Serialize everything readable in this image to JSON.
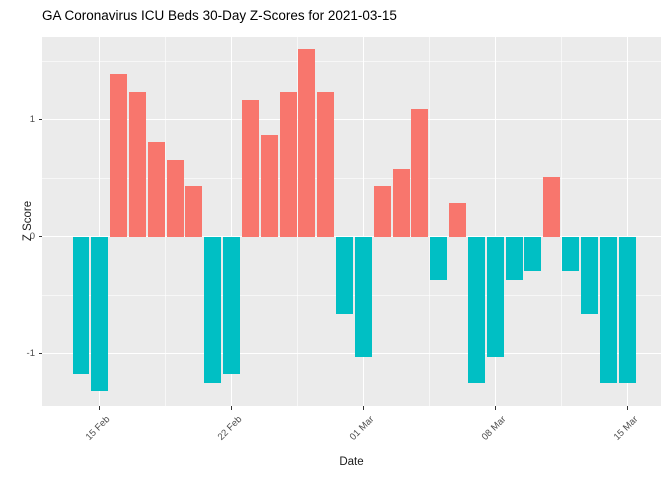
{
  "chart_data": {
    "type": "bar",
    "title": "GA Coronavirus ICU Beds 30-Day Z-Scores for 2021-03-15",
    "xlabel": "Date",
    "ylabel": "Z Score",
    "dates": [
      "2021-02-14",
      "2021-02-15",
      "2021-02-16",
      "2021-02-17",
      "2021-02-18",
      "2021-02-19",
      "2021-02-20",
      "2021-02-21",
      "2021-02-22",
      "2021-02-23",
      "2021-02-24",
      "2021-02-25",
      "2021-02-26",
      "2021-02-27",
      "2021-02-28",
      "2021-03-01",
      "2021-03-02",
      "2021-03-03",
      "2021-03-04",
      "2021-03-05",
      "2021-03-06",
      "2021-03-07",
      "2021-03-08",
      "2021-03-09",
      "2021-03-10",
      "2021-03-11",
      "2021-03-12",
      "2021-03-13",
      "2021-03-14",
      "2021-03-15"
    ],
    "values": [
      -1.18,
      -1.32,
      1.39,
      1.24,
      0.81,
      0.66,
      0.43,
      -1.25,
      -1.18,
      1.17,
      0.87,
      1.24,
      1.61,
      1.24,
      -0.66,
      -1.03,
      0.43,
      0.58,
      1.09,
      -0.37,
      0.29,
      -1.25,
      -1.03,
      -0.37,
      -0.29,
      0.51,
      -0.29,
      -0.66,
      -1.25,
      -1.25
    ],
    "x_tick_labels": [
      "15 Feb",
      "22 Feb",
      "01 Mar",
      "08 Mar",
      "15 Mar"
    ],
    "x_tick_day_indices": [
      1,
      8,
      15,
      22,
      29
    ],
    "x_minor_day_offsets": [
      4.5,
      11.5,
      18.5,
      25.5
    ],
    "y_ticks": [
      -1,
      0,
      1
    ],
    "y_tick_labels": [
      "-1",
      "0",
      "1"
    ],
    "y_minor_ticks": [
      -0.5,
      0.5,
      1.5
    ],
    "ylim": [
      -1.45,
      1.71
    ],
    "x_domain_days": [
      -2.07,
      30.8
    ],
    "bar_width_fraction": 0.9,
    "legend": "none",
    "grid": "on",
    "colors": {
      "positive": "#F8766D",
      "negative": "#00BFC4",
      "panel_background": "#EBEBEB",
      "gridline": "#FFFFFF",
      "axis_text": "#4D4D4D",
      "title_text": "#000000",
      "tick_mark": "#333333"
    }
  }
}
